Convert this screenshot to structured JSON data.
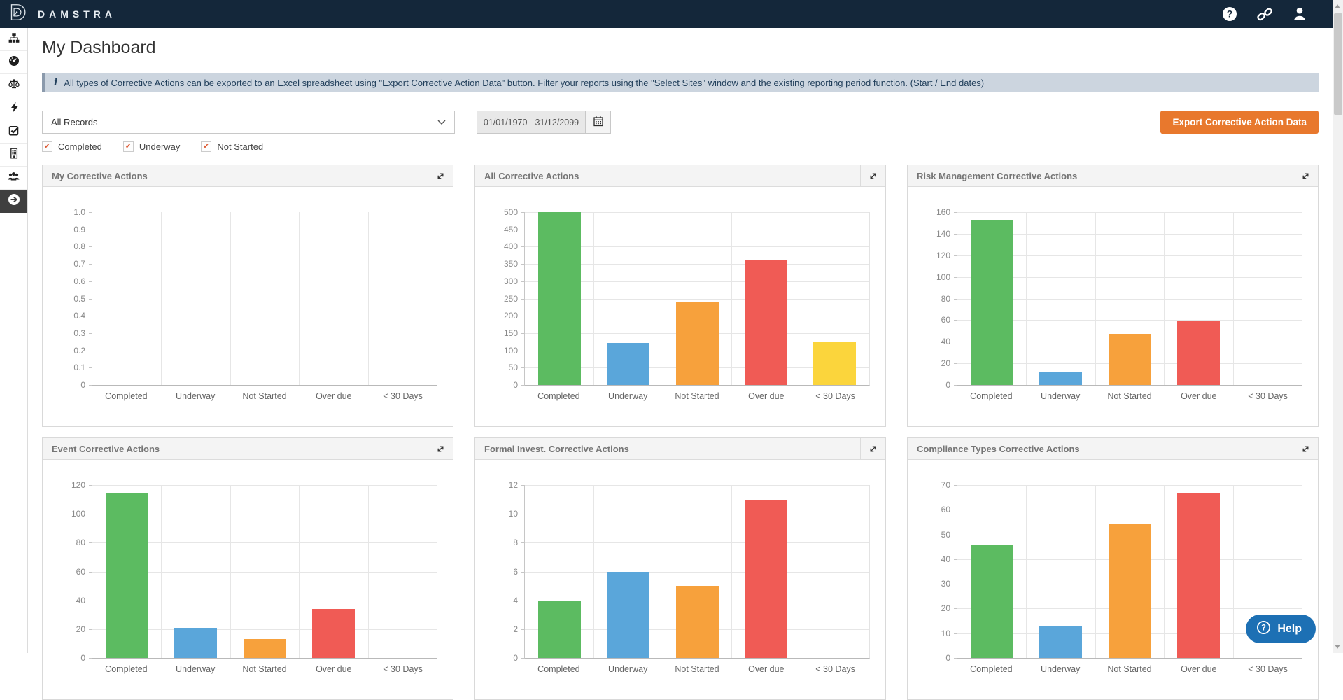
{
  "header": {
    "brand": "DAMSTRA",
    "icons": [
      "damstra-logo-icon",
      "help-circle-icon",
      "link-icon",
      "user-icon"
    ]
  },
  "sidebar": {
    "items": [
      {
        "icon": "org-chart-icon",
        "active": false
      },
      {
        "icon": "dashboard-gauge-icon",
        "active": false
      },
      {
        "icon": "scales-icon",
        "active": false
      },
      {
        "icon": "lightning-icon",
        "active": false
      },
      {
        "icon": "check-square-icon",
        "active": false
      },
      {
        "icon": "building-icon",
        "active": false
      },
      {
        "icon": "users-icon",
        "active": false
      },
      {
        "icon": "arrow-right-circle-icon",
        "active": true
      }
    ]
  },
  "page": {
    "title": "My Dashboard"
  },
  "banner": {
    "icon_glyph": "i",
    "text": "All types of Corrective Actions can be exported to an Excel spreadsheet using \"Export Corrective Action Data\" button. Filter your reports using the \"Select Sites\" window and the existing reporting period function. (Start / End dates)"
  },
  "filters": {
    "records_select": {
      "value": "All Records"
    },
    "date_range": {
      "value": "01/01/1970 - 31/12/2099",
      "icon": "calendar-icon"
    },
    "export_button": "Export Corrective Action Data",
    "check_glyph": "✔",
    "checkboxes": [
      {
        "label": "Completed",
        "checked": true
      },
      {
        "label": "Underway",
        "checked": true
      },
      {
        "label": "Not Started",
        "checked": true
      }
    ]
  },
  "help_button": {
    "label": "Help",
    "icon": "question-circle-icon"
  },
  "colors": {
    "topbar_navy": "#14273a",
    "banner_bg": "#ccd5df",
    "export_orange": "#e8782d",
    "help_blue": "#1d70b4",
    "check_orange": "#dd5b35",
    "bar_green": "#5cbb61",
    "bar_blue": "#5aa6da",
    "bar_orange": "#f7a13c",
    "bar_red": "#f05b55",
    "bar_yellow": "#fbd53c"
  },
  "chart_data": [
    {
      "type": "bar",
      "title": "My Corrective Actions",
      "categories": [
        "Completed",
        "Underway",
        "Not Started",
        "Over due",
        "< 30 Days"
      ],
      "values": [
        0,
        0,
        0,
        0,
        0
      ],
      "colors": [
        "#5cbb61",
        "#5aa6da",
        "#f7a13c",
        "#f05b55",
        "#fbd53c"
      ],
      "ylim": [
        0,
        1
      ],
      "ticks": [
        "1.0",
        "0.9",
        "0.8",
        "0.7",
        "0.6",
        "0.5",
        "0.4",
        "0.3",
        "0.2",
        "0.1",
        "0"
      ],
      "hgrid": false
    },
    {
      "type": "bar",
      "title": "All Corrective Actions",
      "categories": [
        "Completed",
        "Underway",
        "Not Started",
        "Over due",
        "< 30 Days"
      ],
      "values": [
        500,
        122,
        241,
        363,
        126
      ],
      "colors": [
        "#5cbb61",
        "#5aa6da",
        "#f7a13c",
        "#f05b55",
        "#fbd53c"
      ],
      "ylim": [
        0,
        500
      ],
      "ticks": [
        "500",
        "450",
        "400",
        "350",
        "300",
        "250",
        "200",
        "150",
        "100",
        "50",
        "0"
      ],
      "hgrid": true
    },
    {
      "type": "bar",
      "title": "Risk Management Corrective Actions",
      "categories": [
        "Completed",
        "Underway",
        "Not Started",
        "Over due",
        "< 30 Days"
      ],
      "values": [
        153,
        12,
        47,
        59,
        0
      ],
      "colors": [
        "#5cbb61",
        "#5aa6da",
        "#f7a13c",
        "#f05b55",
        "#fbd53c"
      ],
      "ylim": [
        0,
        160
      ],
      "ticks": [
        "160",
        "140",
        "120",
        "100",
        "80",
        "60",
        "40",
        "20",
        "0"
      ],
      "hgrid": true
    },
    {
      "type": "bar",
      "title": "Event Corrective Actions",
      "categories": [
        "Completed",
        "Underway",
        "Not Started",
        "Over due",
        "< 30 Days"
      ],
      "values": [
        114,
        21,
        13,
        34,
        0
      ],
      "colors": [
        "#5cbb61",
        "#5aa6da",
        "#f7a13c",
        "#f05b55",
        "#fbd53c"
      ],
      "ylim": [
        0,
        120
      ],
      "ticks": [
        "120",
        "100",
        "80",
        "60",
        "40",
        "20",
        "0"
      ],
      "hgrid": true
    },
    {
      "type": "bar",
      "title": "Formal Invest. Corrective Actions",
      "categories": [
        "Completed",
        "Underway",
        "Not Started",
        "Over due",
        "< 30 Days"
      ],
      "values": [
        4,
        6,
        5,
        11,
        0
      ],
      "colors": [
        "#5cbb61",
        "#5aa6da",
        "#f7a13c",
        "#f05b55",
        "#fbd53c"
      ],
      "ylim": [
        0,
        12
      ],
      "ticks": [
        "12",
        "10",
        "8",
        "6",
        "4",
        "2",
        "0"
      ],
      "hgrid": true
    },
    {
      "type": "bar",
      "title": "Compliance Types Corrective Actions",
      "categories": [
        "Completed",
        "Underway",
        "Not Started",
        "Over due",
        "< 30 Days"
      ],
      "values": [
        46,
        13,
        54,
        67,
        0
      ],
      "colors": [
        "#5cbb61",
        "#5aa6da",
        "#f7a13c",
        "#f05b55",
        "#fbd53c"
      ],
      "ylim": [
        0,
        70
      ],
      "ticks": [
        "70",
        "60",
        "50",
        "40",
        "30",
        "20",
        "10",
        "0"
      ],
      "hgrid": true
    }
  ]
}
